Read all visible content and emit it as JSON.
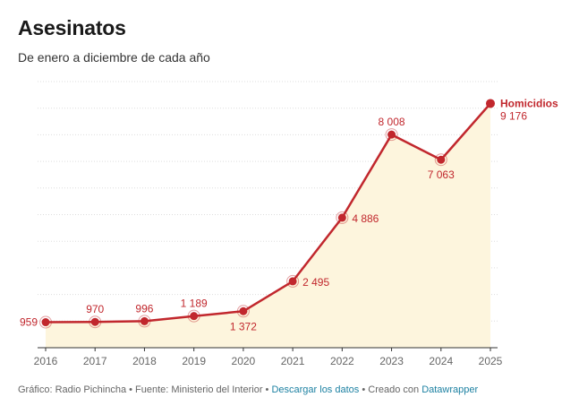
{
  "header": {
    "title": "Asesinatos",
    "subtitle": "De enero a diciembre de cada año"
  },
  "footer": {
    "graphic_label": "Gráfico: Radio Pichincha",
    "separator": " • ",
    "source_label": "Fuente: Ministerio del Interior",
    "download_link": "Descargar los datos",
    "created_label": "Creado con ",
    "datawrapper_link": "Datawrapper"
  },
  "colors": {
    "line": "#c1272d",
    "area": "#fdf5dd",
    "grid": "#dddddd",
    "axis": "#333333",
    "tick_text": "#666666"
  },
  "chart_data": {
    "type": "area",
    "x": [
      "2016",
      "2017",
      "2018",
      "2019",
      "2020",
      "2021",
      "2022",
      "2023",
      "2024",
      "2025"
    ],
    "series": [
      {
        "name": "Homicidios",
        "values": [
          959,
          970,
          996,
          1189,
          1372,
          2495,
          4886,
          8008,
          7063,
          9176
        ],
        "labels": [
          "959",
          "970",
          "996",
          "1 189",
          "1 372",
          "2 495",
          "4 886",
          "8 008",
          "7 063",
          "9 176"
        ]
      }
    ],
    "ylim": [
      0,
      10000
    ],
    "grid": true,
    "y_tick_labels_shown": false,
    "legend": "end-of-line label"
  }
}
